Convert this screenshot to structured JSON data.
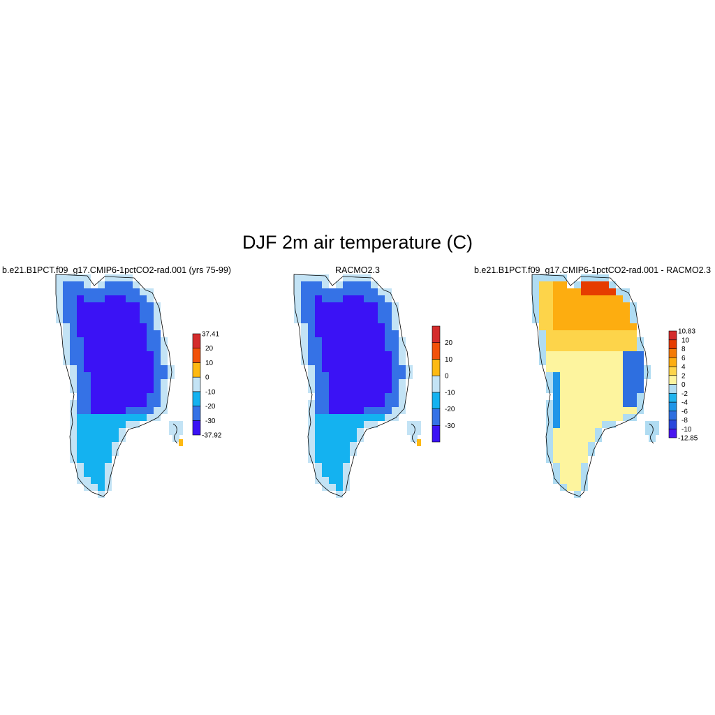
{
  "figure": {
    "title": "DJF 2m air temperature (C)"
  },
  "panels": [
    {
      "title": "b.e21.B1PCT.f09_g17.CMIP6-1pctCO2-rad.001 (yrs 75-99)"
    },
    {
      "title": "RACMO2.3"
    },
    {
      "title": "b.e21.B1PCT.f09_g17.CMIP6-1pctCO2-rad.001 - RACMO2.3"
    }
  ],
  "chart_data": [
    {
      "type": "heatmap",
      "title": "b.e21.B1PCT.f09_g17.CMIP6-1pctCO2-rad.001 (yrs 75-99)",
      "colorbar": {
        "min_label": "-37.92",
        "max_label": "37.41",
        "levels": [
          -30,
          -20,
          -10,
          0,
          10,
          20
        ],
        "tick_labels": [
          "-30",
          "-20",
          "-10",
          "0",
          "10",
          "20"
        ],
        "colors": [
          "#3b12f5",
          "#3572e6",
          "#14b2f0",
          "#c3e3f5",
          "#fdb913",
          "#f2520a",
          "#d42c2c"
        ]
      },
      "zones": {
        "interior": -35,
        "middle": -25,
        "south": -15,
        "coast": -5,
        "island_tip": 5
      }
    },
    {
      "type": "heatmap",
      "title": "RACMO2.3",
      "colorbar": {
        "levels": [
          -30,
          -20,
          -10,
          0,
          10,
          20
        ],
        "tick_labels": [
          "-30",
          "-20",
          "-10",
          "0",
          "10",
          "20"
        ],
        "colors": [
          "#3b12f5",
          "#3572e6",
          "#14b2f0",
          "#c3e3f5",
          "#fdb913",
          "#f2520a",
          "#d42c2c"
        ]
      },
      "zones": {
        "interior": -35,
        "middle": -25,
        "south": -15,
        "coast": -5,
        "island_tip": 5
      }
    },
    {
      "type": "heatmap",
      "title": "b.e21.B1PCT.f09_g17.CMIP6-1pctCO2-rad.001 - RACMO2.3",
      "colorbar": {
        "min_label": "-12.85",
        "max_label": "10.83",
        "levels": [
          -10,
          -8,
          -6,
          -4,
          -2,
          0,
          2,
          4,
          6,
          8,
          10
        ],
        "tick_labels": [
          "-10",
          "-8",
          "-6",
          "-4",
          "-2",
          "0",
          "2",
          "4",
          "6",
          "8",
          "10"
        ],
        "colors": [
          "#4a16f0",
          "#2a47dc",
          "#2e6fe0",
          "#1f95e8",
          "#20b4ef",
          "#b0dcf2",
          "#fdf49e",
          "#fdd44a",
          "#fdad10",
          "#f47a05",
          "#e63c00",
          "#d42c2c"
        ]
      },
      "zones": {
        "north_core": 9,
        "north": 5,
        "north_rim": 3,
        "central": 1,
        "south": 1,
        "east_coast": -7,
        "west_coast": -5,
        "edge": -1
      }
    }
  ]
}
